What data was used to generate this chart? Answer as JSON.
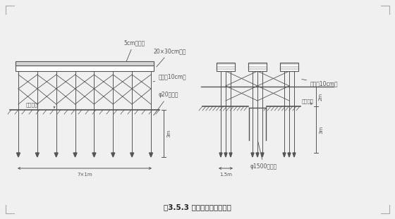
{
  "title": "图3.5.3 水上工作平台示意图",
  "bg_color": "#f0f0f0",
  "line_color": "#555555",
  "labels": {
    "board": "5cm厚木板",
    "sleeper": "20×30cm枕木",
    "brace1": "斜拉杆10cm厚",
    "pile": "φ20圆木桩",
    "riverbed": "规划河床",
    "brace2": "斜拉杆10cm厚",
    "riverbed2": "规划河床",
    "pipe": "φ1500钢护筒",
    "width_label": "7×1m",
    "depth_label": "3m",
    "side_label": "1.5m",
    "depth2": "2m",
    "depth3": "3m"
  },
  "corner_color": "#aaaaaa"
}
